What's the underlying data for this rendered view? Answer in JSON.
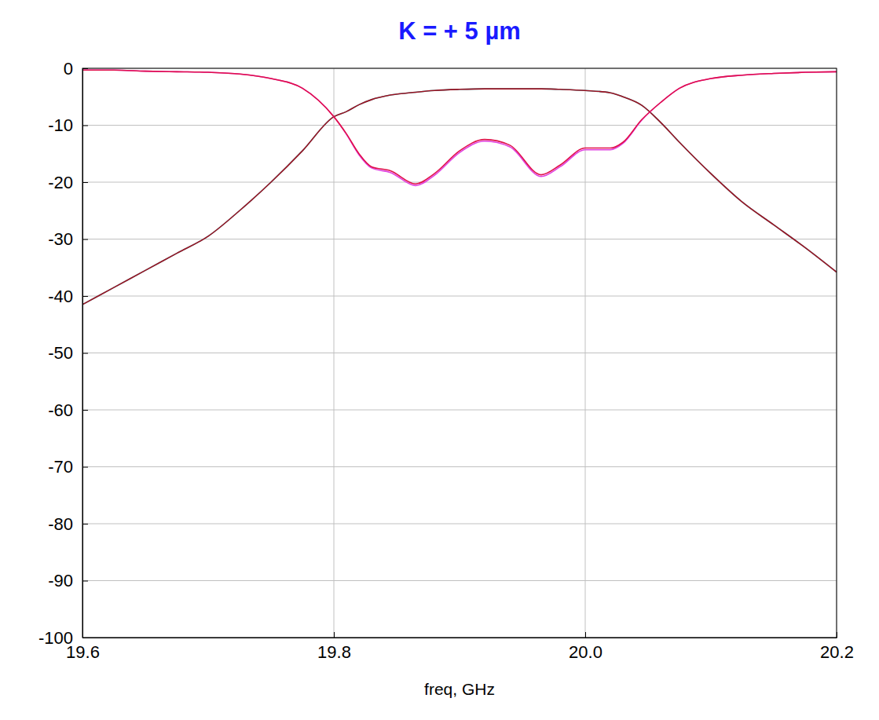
{
  "chart_data": {
    "type": "line",
    "title": "K = + 5 µm",
    "x_label": "freq, GHz",
    "x": [
      19.6,
      19.625,
      19.65,
      19.675,
      19.7,
      19.725,
      19.75,
      19.775,
      19.8,
      19.81,
      19.82,
      19.83,
      19.845,
      19.865,
      19.88,
      19.9,
      19.92,
      19.94,
      19.965,
      19.98,
      20.0,
      20.02,
      20.03,
      20.045,
      20.06,
      20.075,
      20.1,
      20.125,
      20.15,
      20.175,
      20.2
    ],
    "series": [
      {
        "color": "#33cccc",
        "values": [
          -41.5,
          -38.5,
          -35.5,
          -32.5,
          -29.5,
          -25,
          -20,
          -14.5,
          -8.5,
          -7.6,
          -6.4,
          -5.5,
          -4.7,
          -4.2,
          -3.9,
          -3.7,
          -3.6,
          -3.6,
          -3.6,
          -3.7,
          -3.9,
          -4.3,
          -5,
          -6.5,
          -9.5,
          -13,
          -18.5,
          -23.5,
          -27.5,
          -31.5,
          -35.8
        ]
      },
      {
        "color": "#a01020",
        "values": [
          -41.5,
          -38.5,
          -35.5,
          -32.5,
          -29.5,
          -25,
          -20,
          -14.5,
          -8.5,
          -7.6,
          -6.4,
          -5.5,
          -4.7,
          -4.2,
          -3.9,
          -3.7,
          -3.6,
          -3.6,
          -3.6,
          -3.7,
          -3.9,
          -4.3,
          -5,
          -6.5,
          -9.5,
          -13,
          -18.5,
          -23.5,
          -27.5,
          -31.5,
          -35.8
        ]
      },
      {
        "color": "#e040e0",
        "values": [
          -0.3,
          -0.3,
          -0.5,
          -0.6,
          -0.7,
          -1,
          -1.8,
          -3.5,
          -8.5,
          -11.6,
          -15.2,
          -17.5,
          -18.3,
          -20.6,
          -18.8,
          -14.8,
          -12.8,
          -13.8,
          -19,
          -17.3,
          -14.3,
          -14.3,
          -13.2,
          -9.1,
          -6,
          -3.5,
          -1.8,
          -1.2,
          -0.9,
          -0.7,
          -0.6
        ]
      },
      {
        "color": "#e0104a",
        "values": [
          -0.3,
          -0.3,
          -0.5,
          -0.6,
          -0.7,
          -1,
          -1.8,
          -3.5,
          -8.5,
          -11.5,
          -15,
          -17.3,
          -18,
          -20.3,
          -18.5,
          -14.5,
          -12.5,
          -13.5,
          -18.7,
          -17,
          -14,
          -14,
          -13,
          -9,
          -6,
          -3.5,
          -1.8,
          -1.2,
          -0.9,
          -0.7,
          -0.6
        ]
      }
    ],
    "xlim": [
      19.6,
      20.2
    ],
    "xticks": [
      19.6,
      19.8,
      {
        "value": 20,
        "label": "20.0"
      },
      20.2
    ],
    "ylim": [
      -100,
      0
    ],
    "yticks": [
      0,
      -10,
      -20,
      -30,
      -40,
      -50,
      -60,
      -70,
      -80,
      -90,
      -100
    ],
    "grid": true
  }
}
